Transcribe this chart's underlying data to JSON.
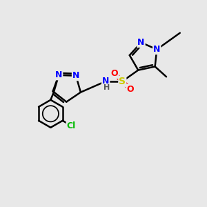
{
  "background_color": "#e8e8e8",
  "bond_color": "#000000",
  "bond_width": 1.8,
  "atom_colors": {
    "N": "#0000ff",
    "O": "#ff0000",
    "S": "#cccc00",
    "Cl": "#00bb00",
    "C": "#000000",
    "H": "#555555"
  },
  "font_size": 9,
  "title": ""
}
